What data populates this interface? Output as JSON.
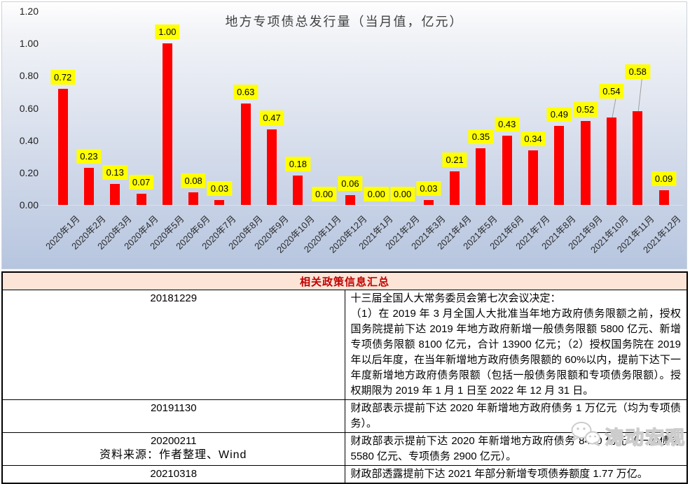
{
  "chart_data": {
    "type": "bar",
    "title": "地方专项债总发行量（当月值，亿元）",
    "categories": [
      "2020年1月",
      "2020年2月",
      "2020年3月",
      "2020年4月",
      "2020年5月",
      "2020年6月",
      "2020年7月",
      "2020年8月",
      "2020年9月",
      "2020年10月",
      "2020年11月",
      "2020年12月",
      "2021年1月",
      "2021年2月",
      "2021年3月",
      "2021年4月",
      "2021年5月",
      "2021年6月",
      "2021年7月",
      "2021年8月",
      "2021年9月",
      "2021年10月",
      "2021年11月",
      "2021年12月"
    ],
    "values": [
      0.72,
      0.23,
      0.13,
      0.07,
      1.0,
      0.08,
      0.03,
      0.63,
      0.47,
      0.18,
      0.0,
      0.06,
      0.0,
      0.0,
      0.03,
      0.21,
      0.35,
      0.43,
      0.34,
      0.49,
      0.52,
      0.54,
      0.58,
      0.09
    ],
    "xlabel": "",
    "ylabel": "",
    "ylim": [
      0,
      1.2
    ],
    "y_tick_labels": [
      "1.20",
      "1.00",
      "0.80",
      "0.60",
      "0.40",
      "0.20",
      "0.00"
    ],
    "grid": false,
    "legend": false,
    "data_labels": true,
    "label_format": "two-decimals",
    "bar_color": "#ff0000",
    "label_bg": "#ffff00"
  },
  "table": {
    "header": "相关政策信息汇总",
    "rows": [
      {
        "date": "20181229",
        "text": "十三届全国人大常务委员会第七次会议决定：\n（1）在 2019 年 3 月全国人大批准当年地方政府债务限额之前，授权国务院提前下达 2019 年地方政府新增一般债务限额 5800 亿元、新增专项债务限额 8100 亿元，合计 13900 亿元；（2）授权国务院在 2019 年以后年度，在当年新增地方政府债务限额的 60%以内，提前下达下一年度新增地方政府债务限额（包括一般债务限额和专项债务限额）。授权期限为 2019 年 1 月 1 日至 2022 年 12 月 31 日。"
      },
      {
        "date": "20191130",
        "text": "财政部表示提前下达 2020 年新增地方政府债务 1 万亿元（均为专项债务）。"
      },
      {
        "date": "20200211",
        "text": "财政部表示提前下达 2020 年新增地方政府债务 8480 亿元（一般债务 5580 亿元、专项债务 2900 亿元）。"
      },
      {
        "date": "20210318",
        "text": "财政部透露提前下达 2021 年部分新增专项债券额度 1.77 万亿。"
      }
    ]
  },
  "footer": {
    "source": "资料来源：作者整理、Wind"
  },
  "watermark": {
    "text": "涛动宏观",
    "icon": "wechat-chat-bubbles-icon"
  },
  "colors": {
    "bar": "#ff0000",
    "data_label_bg": "#ffff00",
    "table_header_bg": "#fce4d6",
    "table_header_text": "#c00000",
    "leader_line": "#9e9e9e"
  }
}
